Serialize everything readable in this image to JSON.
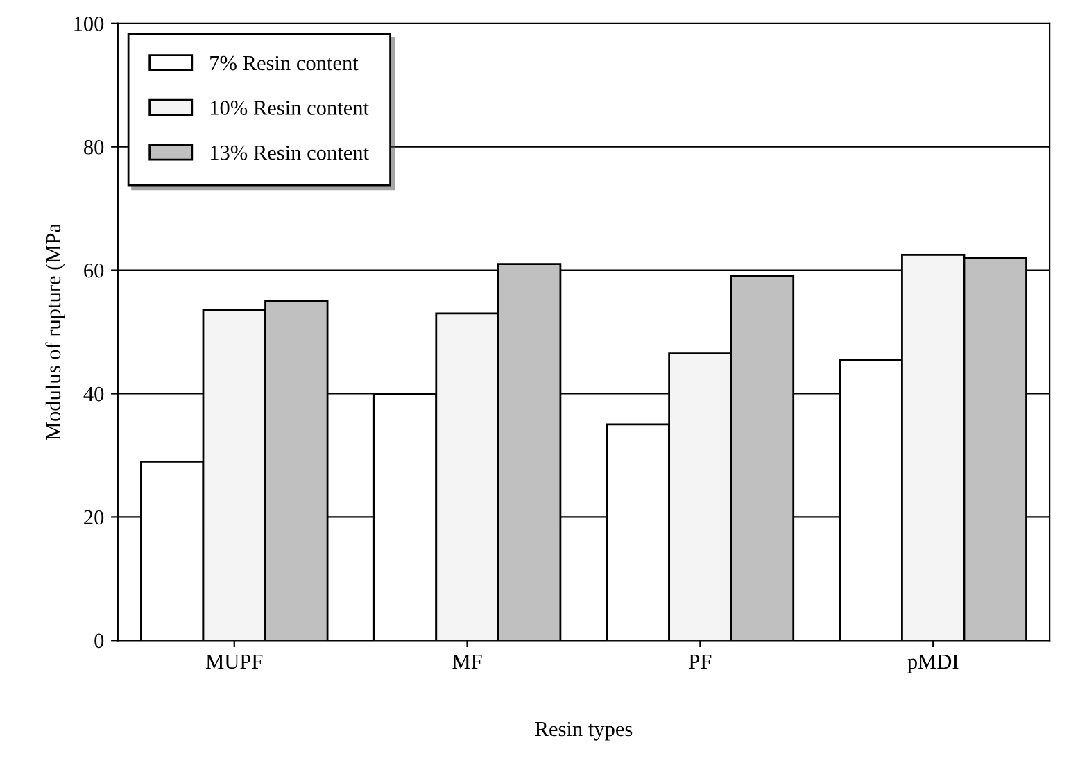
{
  "chart_data": {
    "type": "bar",
    "xlabel": "Resin types",
    "ylabel": "Modulus of rupture (MPa",
    "categories": [
      "MUPF",
      "MF",
      "PF",
      "pMDI"
    ],
    "series": [
      {
        "name": "7% Resin content",
        "color": "#ffffff",
        "values": [
          29,
          40,
          35,
          45.5
        ]
      },
      {
        "name": "10% Resin content",
        "color": "#f4f4f4",
        "values": [
          53.5,
          53,
          46.5,
          62.5
        ]
      },
      {
        "name": "13% Resin content",
        "color": "#c0c0c0",
        "values": [
          55,
          61,
          59,
          62
        ]
      }
    ],
    "ylim": [
      0,
      100
    ],
    "yticks": [
      0,
      20,
      40,
      60,
      80,
      100
    ],
    "grid": "y",
    "legend": "top left"
  }
}
